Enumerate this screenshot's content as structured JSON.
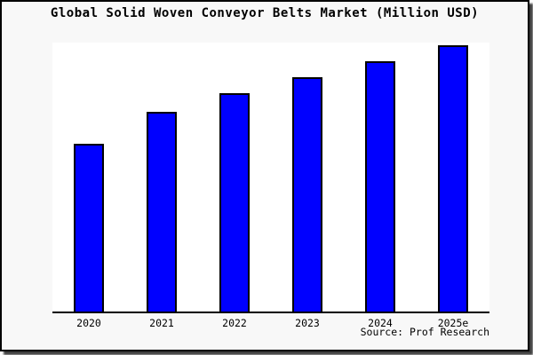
{
  "figure": {
    "title": "Global Solid Woven Conveyor Belts Market (Million USD)",
    "source": "Source: Prof Research"
  },
  "chart_data": {
    "type": "bar",
    "title": "Global Solid Woven Conveyor Belts Market (Million USD)",
    "categories": [
      "2020",
      "2021",
      "2022",
      "2023",
      "2024",
      "2025e"
    ],
    "values": [
      63,
      75,
      82,
      88,
      94,
      100
    ],
    "xlabel": "",
    "ylabel": "",
    "ylim": [
      0,
      101
    ],
    "grid": false,
    "legend": null,
    "y_axis_visible": false,
    "annotation": "Source: Prof Research"
  },
  "colors": {
    "figure_bg": "#f8f8f8",
    "plot_bg": "#ffffff",
    "bar_fill": "#0000ff",
    "bar_edge": "#000000",
    "axis": "#000000",
    "text": "#000000"
  }
}
